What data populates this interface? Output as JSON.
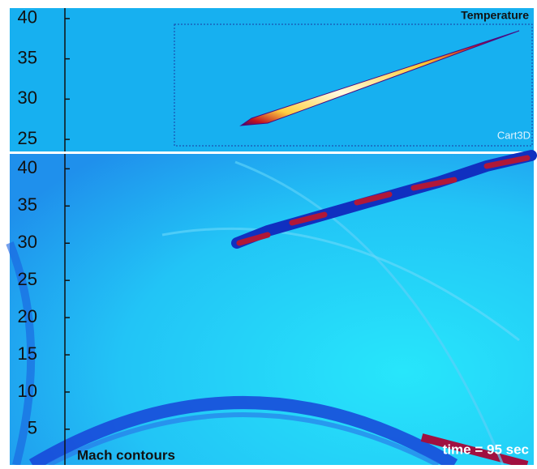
{
  "top_panel": {
    "title": "Temperature",
    "watermark": "Cart3D",
    "ylim": [
      23.5,
      41.3
    ],
    "yticks": [
      25,
      30,
      35,
      40
    ]
  },
  "bottom_panel": {
    "title": "Mach contours",
    "time_label": "time = 95 sec",
    "ylim": [
      0.2,
      42
    ],
    "yticks": [
      5,
      10,
      15,
      20,
      25,
      30,
      35,
      40
    ]
  }
}
